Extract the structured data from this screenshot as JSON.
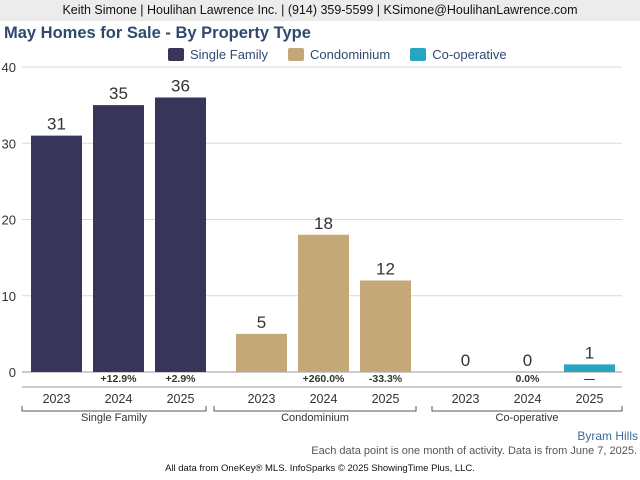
{
  "header": {
    "text": "Keith Simone | Houlihan Lawrence Inc. | (914) 359-5599 | KSimone@HoulihanLawrence.com"
  },
  "colors": {
    "single_family": "#37355a",
    "condominium": "#c4a878",
    "cooperative": "#27a6c2"
  },
  "chart_data": {
    "type": "bar",
    "title": "May Homes for Sale - By Property Type",
    "ylim": [
      0,
      40
    ],
    "yticks": [
      0,
      10,
      20,
      30,
      40
    ],
    "grid": true,
    "legend_position": "top",
    "legend": [
      "Single Family",
      "Condominium",
      "Co-operative"
    ],
    "groups": [
      {
        "name": "Single Family",
        "color": "#37355a",
        "categories": [
          "2023",
          "2024",
          "2025"
        ],
        "values": [
          31,
          35,
          36
        ],
        "changes": [
          "",
          "+12.9%",
          "+2.9%"
        ]
      },
      {
        "name": "Condominium",
        "color": "#c4a878",
        "categories": [
          "2023",
          "2024",
          "2025"
        ],
        "values": [
          5,
          18,
          12
        ],
        "changes": [
          "",
          "+260.0%",
          "-33.3%"
        ]
      },
      {
        "name": "Co-operative",
        "color": "#27a6c2",
        "categories": [
          "2023",
          "2024",
          "2025"
        ],
        "values": [
          0,
          0,
          1
        ],
        "changes": [
          "",
          "0.0%",
          "—"
        ]
      }
    ]
  },
  "area": {
    "name": "Byram Hills"
  },
  "note": {
    "text": "Each data point is one month of activity. Data is from June 7, 2025."
  },
  "footer": {
    "text": "All data from OneKey® MLS. InfoSparks © 2025 ShowingTime Plus, LLC."
  }
}
